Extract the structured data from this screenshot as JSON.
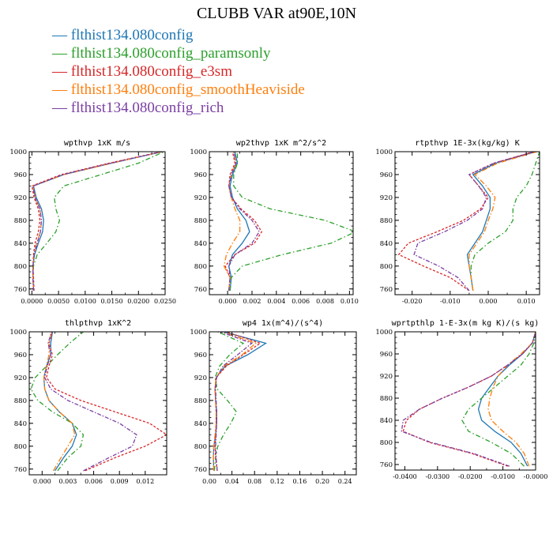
{
  "page": {
    "title": "CLUBB VAR at90E,10N"
  },
  "series": [
    {
      "name": "flthist134.080config",
      "color": "#1f77b4",
      "dash": "none"
    },
    {
      "name": "flthist134.080config_paramsonly",
      "color": "#2ca02c",
      "dash": "6,3,1.5,3"
    },
    {
      "name": "flthist134.080config_e3sm",
      "color": "#d62728",
      "dash": "3,2"
    },
    {
      "name": "flthist134.080config_smoothHeaviside",
      "color": "#ff7f0e",
      "dash": "7,2.5,1.5,2.5"
    },
    {
      "name": "flthist134.080config_rich",
      "color": "#7b3fa3",
      "dash": "5,2,1.5,2"
    }
  ],
  "chart_data": [
    {
      "type": "line",
      "title": "wpthvp  1xK m/s",
      "xlim": [
        -0.0005,
        0.025
      ],
      "ylim": [
        1000,
        750
      ],
      "xticks": [
        0.0,
        0.005,
        0.01,
        0.015,
        0.02,
        0.025
      ],
      "xticklabels": [
        "0.0000",
        "0.0050",
        "0.0100",
        "0.0150",
        "0.0200",
        "0.0250"
      ],
      "yticks": [
        760,
        800,
        840,
        880,
        920,
        960,
        1000
      ],
      "y": [
        757,
        780,
        800,
        820,
        840,
        860,
        880,
        900,
        920,
        940,
        960,
        980,
        1000
      ],
      "series": [
        {
          "name": "flthist134.080config",
          "values": [
            0.0003,
            0.0002,
            0.0002,
            0.0005,
            0.0012,
            0.002,
            0.0022,
            0.0018,
            0.0008,
            0.0003,
            0.006,
            0.015,
            0.0245
          ]
        },
        {
          "name": "flthist134.080config_paramsonly",
          "values": [
            0.0003,
            0.0002,
            0.0003,
            0.001,
            0.0028,
            0.0045,
            0.0052,
            0.0045,
            0.0042,
            0.006,
            0.013,
            0.02,
            0.0248
          ]
        },
        {
          "name": "flthist134.080config_e3sm",
          "values": [
            0.0004,
            0.0003,
            0.0002,
            0.0003,
            0.0006,
            0.0012,
            0.0015,
            0.0012,
            0.0004,
            0.0,
            0.0055,
            0.0145,
            0.0243
          ]
        },
        {
          "name": "flthist134.080config_smoothHeaviside",
          "values": [
            0.0003,
            0.0002,
            0.0002,
            0.0004,
            0.0009,
            0.0016,
            0.0018,
            0.0015,
            0.0006,
            0.0002,
            0.006,
            0.015,
            0.0244
          ]
        },
        {
          "name": "flthist134.080config_rich",
          "values": [
            0.0003,
            0.0002,
            0.0002,
            0.0004,
            0.001,
            0.0016,
            0.0018,
            0.0015,
            0.0006,
            0.0002,
            0.0058,
            0.0148,
            0.0244
          ]
        }
      ]
    },
    {
      "type": "line",
      "title": "wp2thvp  1xK m^2/s^2",
      "xlim": [
        -0.0015,
        0.0103
      ],
      "ylim": [
        1000,
        750
      ],
      "xticks": [
        0.0,
        0.002,
        0.004,
        0.006,
        0.008,
        0.01
      ],
      "xticklabels": [
        "0.000",
        "0.002",
        "0.004",
        "0.006",
        "0.008",
        "0.010"
      ],
      "yticks": [
        760,
        800,
        840,
        880,
        920,
        960,
        1000
      ],
      "y": [
        757,
        780,
        800,
        820,
        840,
        860,
        880,
        900,
        920,
        940,
        960,
        980,
        1000
      ],
      "series": [
        {
          "name": "flthist134.080config",
          "values": [
            0.0002,
            0.0003,
            0.0001,
            0.0004,
            0.0012,
            0.0018,
            0.0015,
            0.0008,
            0.0004,
            0.0002,
            0.0004,
            0.0008,
            0.0006
          ]
        },
        {
          "name": "flthist134.080config_paramsonly",
          "values": [
            0.0002,
            0.0003,
            0.0012,
            0.0045,
            0.0085,
            0.0105,
            0.008,
            0.0035,
            0.0012,
            0.0005,
            0.0005,
            0.0008,
            0.0008
          ]
        },
        {
          "name": "flthist134.080config_e3sm",
          "values": [
            0.0001,
            0.0002,
            -0.0002,
            0.0006,
            0.0022,
            0.0028,
            0.0022,
            0.0011,
            0.0003,
            0.0001,
            0.0002,
            0.0006,
            0.0004
          ]
        },
        {
          "name": "flthist134.080config_smoothHeaviside",
          "values": [
            0.0001,
            0.0002,
            -0.0003,
            -0.0001,
            0.0004,
            0.001,
            0.001,
            0.0006,
            0.0003,
            0.0001,
            0.0003,
            0.0007,
            0.0005
          ]
        },
        {
          "name": "flthist134.080config_rich",
          "values": [
            0.0001,
            0.0002,
            0.0001,
            0.0006,
            0.002,
            0.0026,
            0.002,
            0.001,
            0.0003,
            0.0001,
            0.0003,
            0.0007,
            0.0005
          ]
        }
      ]
    },
    {
      "type": "line",
      "title": "rtpthvp  1E-3x(kg/kg) K",
      "xlim": [
        -0.0245,
        0.0135
      ],
      "ylim": [
        1000,
        750
      ],
      "xticks": [
        -0.02,
        -0.01,
        0.0,
        0.01
      ],
      "xticklabels": [
        "-0.020",
        "-0.010",
        "0.000",
        "0.010"
      ],
      "yticks": [
        760,
        800,
        840,
        880,
        920,
        960,
        1000
      ],
      "y": [
        757,
        780,
        800,
        820,
        840,
        860,
        880,
        900,
        920,
        940,
        960,
        980,
        1000
      ],
      "series": [
        {
          "name": "flthist134.080config",
          "values": [
            -0.004,
            -0.0045,
            -0.005,
            -0.0055,
            -0.0035,
            -0.0015,
            -0.0005,
            0.0005,
            0.0005,
            -0.0015,
            -0.004,
            0.002,
            0.0125
          ]
        },
        {
          "name": "flthist134.080config_paramsonly",
          "values": [
            -0.004,
            -0.0045,
            -0.0045,
            -0.0035,
            0.0,
            0.0045,
            0.0065,
            0.0065,
            0.0075,
            0.01,
            0.0115,
            0.0125,
            0.0135
          ]
        },
        {
          "name": "flthist134.080config_e3sm",
          "values": [
            -0.005,
            -0.01,
            -0.017,
            -0.0235,
            -0.021,
            -0.0135,
            -0.0065,
            -0.002,
            0.0,
            -0.0025,
            -0.005,
            0.0015,
            0.012
          ]
        },
        {
          "name": "flthist134.080config_smoothHeaviside",
          "values": [
            -0.004,
            -0.0045,
            -0.005,
            -0.005,
            -0.003,
            -0.001,
            0.0,
            0.0012,
            0.0018,
            -0.0005,
            -0.0035,
            0.0025,
            0.0128
          ]
        },
        {
          "name": "flthist134.080config_rich",
          "values": [
            -0.005,
            -0.008,
            -0.013,
            -0.0195,
            -0.0185,
            -0.0115,
            -0.0055,
            -0.0015,
            -0.0005,
            -0.0025,
            -0.005,
            0.0015,
            0.0122
          ]
        }
      ]
    },
    {
      "type": "line",
      "title": "thlpthvp  1xK^2",
      "xlim": [
        -0.0015,
        0.0145
      ],
      "ylim": [
        1000,
        750
      ],
      "xticks": [
        0.0,
        0.003,
        0.006,
        0.009,
        0.012
      ],
      "xticklabels": [
        "0.000",
        "0.003",
        "0.006",
        "0.009",
        "0.012"
      ],
      "yticks": [
        760,
        800,
        840,
        880,
        920,
        960,
        1000
      ],
      "y": [
        757,
        780,
        800,
        820,
        840,
        860,
        880,
        900,
        920,
        940,
        960,
        980,
        1000
      ],
      "series": [
        {
          "name": "flthist134.080config",
          "values": [
            0.0015,
            0.0025,
            0.0035,
            0.004,
            0.0035,
            0.002,
            0.0008,
            0.0003,
            0.0002,
            0.0005,
            0.001,
            0.001,
            0.0012
          ]
        },
        {
          "name": "flthist134.080config_paramsonly",
          "values": [
            0.0018,
            0.003,
            0.0045,
            0.0048,
            0.0035,
            0.0012,
            -0.0005,
            -0.0013,
            -0.0008,
            0.0005,
            0.0018,
            0.0032,
            0.0048
          ]
        },
        {
          "name": "flthist134.080config_e3sm",
          "values": [
            0.005,
            0.0085,
            0.012,
            0.0145,
            0.0125,
            0.0085,
            0.0045,
            0.0015,
            0.0005,
            0.0008,
            0.0012,
            0.0008,
            0.0012
          ]
        },
        {
          "name": "flthist134.080config_smoothHeaviside",
          "values": [
            0.0013,
            0.0022,
            0.003,
            0.0038,
            0.0035,
            0.002,
            0.0008,
            0.0003,
            0.0002,
            0.0005,
            0.0008,
            0.0008,
            0.0011
          ]
        },
        {
          "name": "flthist134.080config_rich",
          "values": [
            0.0048,
            0.0078,
            0.0105,
            0.011,
            0.009,
            0.006,
            0.003,
            0.001,
            0.0003,
            0.0006,
            0.001,
            0.0007,
            0.0011
          ]
        }
      ]
    },
    {
      "type": "line",
      "title": "wp4  1x(m^4)/(s^4)",
      "xlim": [
        0.0,
        0.26
      ],
      "ylim": [
        1000,
        750
      ],
      "xticks": [
        0.0,
        0.04,
        0.08,
        0.12,
        0.16,
        0.2,
        0.24
      ],
      "xticklabels": [
        "0.00",
        "0.04",
        "0.08",
        "0.12",
        "0.16",
        "0.20",
        "0.24"
      ],
      "yticks": [
        760,
        800,
        840,
        880,
        920,
        960,
        1000
      ],
      "y": [
        757,
        780,
        800,
        820,
        840,
        860,
        880,
        900,
        920,
        940,
        960,
        980,
        1000
      ],
      "series": [
        {
          "name": "flthist134.080config",
          "values": [
            0.008,
            0.007,
            0.008,
            0.011,
            0.013,
            0.013,
            0.011,
            0.01,
            0.012,
            0.028,
            0.068,
            0.1,
            0.025
          ]
        },
        {
          "name": "flthist134.080config_paramsonly",
          "values": [
            0.009,
            0.011,
            0.015,
            0.025,
            0.038,
            0.048,
            0.032,
            0.014,
            0.01,
            0.018,
            0.036,
            0.06,
            0.015
          ]
        },
        {
          "name": "flthist134.080config_e3sm",
          "values": [
            0.014,
            0.011,
            0.01,
            0.011,
            0.012,
            0.012,
            0.011,
            0.01,
            0.012,
            0.03,
            0.06,
            0.09,
            0.03
          ]
        },
        {
          "name": "flthist134.080config_smoothHeaviside",
          "values": [
            0.008,
            0.007,
            0.008,
            0.01,
            0.012,
            0.012,
            0.011,
            0.01,
            0.012,
            0.026,
            0.058,
            0.082,
            0.022
          ]
        },
        {
          "name": "flthist134.080config_rich",
          "values": [
            0.014,
            0.012,
            0.011,
            0.012,
            0.013,
            0.013,
            0.012,
            0.011,
            0.013,
            0.024,
            0.05,
            0.075,
            0.02
          ]
        }
      ]
    },
    {
      "type": "line",
      "title": "wprtpthlp  1-E-3x(m kg K)/(s kg)",
      "xlim": [
        -0.043,
        0.0
      ],
      "ylim": [
        1000,
        750
      ],
      "xticks": [
        -0.04,
        -0.03,
        -0.02,
        -0.01,
        0.0
      ],
      "xticklabels": [
        "-0.0400",
        "-0.0300",
        "-0.0200",
        "-0.0100",
        "-0.0000"
      ],
      "yticks": [
        760,
        800,
        840,
        880,
        920,
        960,
        1000
      ],
      "y": [
        757,
        780,
        800,
        820,
        840,
        860,
        880,
        900,
        920,
        940,
        960,
        980,
        1000
      ],
      "series": [
        {
          "name": "flthist134.080config",
          "values": [
            -0.0025,
            -0.0045,
            -0.0075,
            -0.0125,
            -0.0165,
            -0.0175,
            -0.0165,
            -0.014,
            -0.0115,
            -0.008,
            -0.004,
            -0.001,
            0.0
          ]
        },
        {
          "name": "flthist134.080config_paramsonly",
          "values": [
            -0.0035,
            -0.0075,
            -0.0135,
            -0.0205,
            -0.0225,
            -0.0205,
            -0.0165,
            -0.0125,
            -0.0085,
            -0.0045,
            -0.002,
            -0.0005,
            0.0
          ]
        },
        {
          "name": "flthist134.080config_e3sm",
          "values": [
            -0.0085,
            -0.0195,
            -0.0325,
            -0.0405,
            -0.0395,
            -0.0355,
            -0.0285,
            -0.0205,
            -0.0135,
            -0.0085,
            -0.004,
            -0.001,
            0.0
          ]
        },
        {
          "name": "flthist134.080config_smoothHeaviside",
          "values": [
            -0.002,
            -0.0035,
            -0.006,
            -0.01,
            -0.0135,
            -0.0145,
            -0.014,
            -0.013,
            -0.0115,
            -0.0085,
            -0.0045,
            -0.001,
            0.0
          ]
        },
        {
          "name": "flthist134.080config_rich",
          "values": [
            -0.008,
            -0.019,
            -0.032,
            -0.041,
            -0.0405,
            -0.0355,
            -0.0285,
            -0.0205,
            -0.0135,
            -0.0085,
            -0.004,
            -0.001,
            0.0
          ]
        }
      ]
    }
  ]
}
